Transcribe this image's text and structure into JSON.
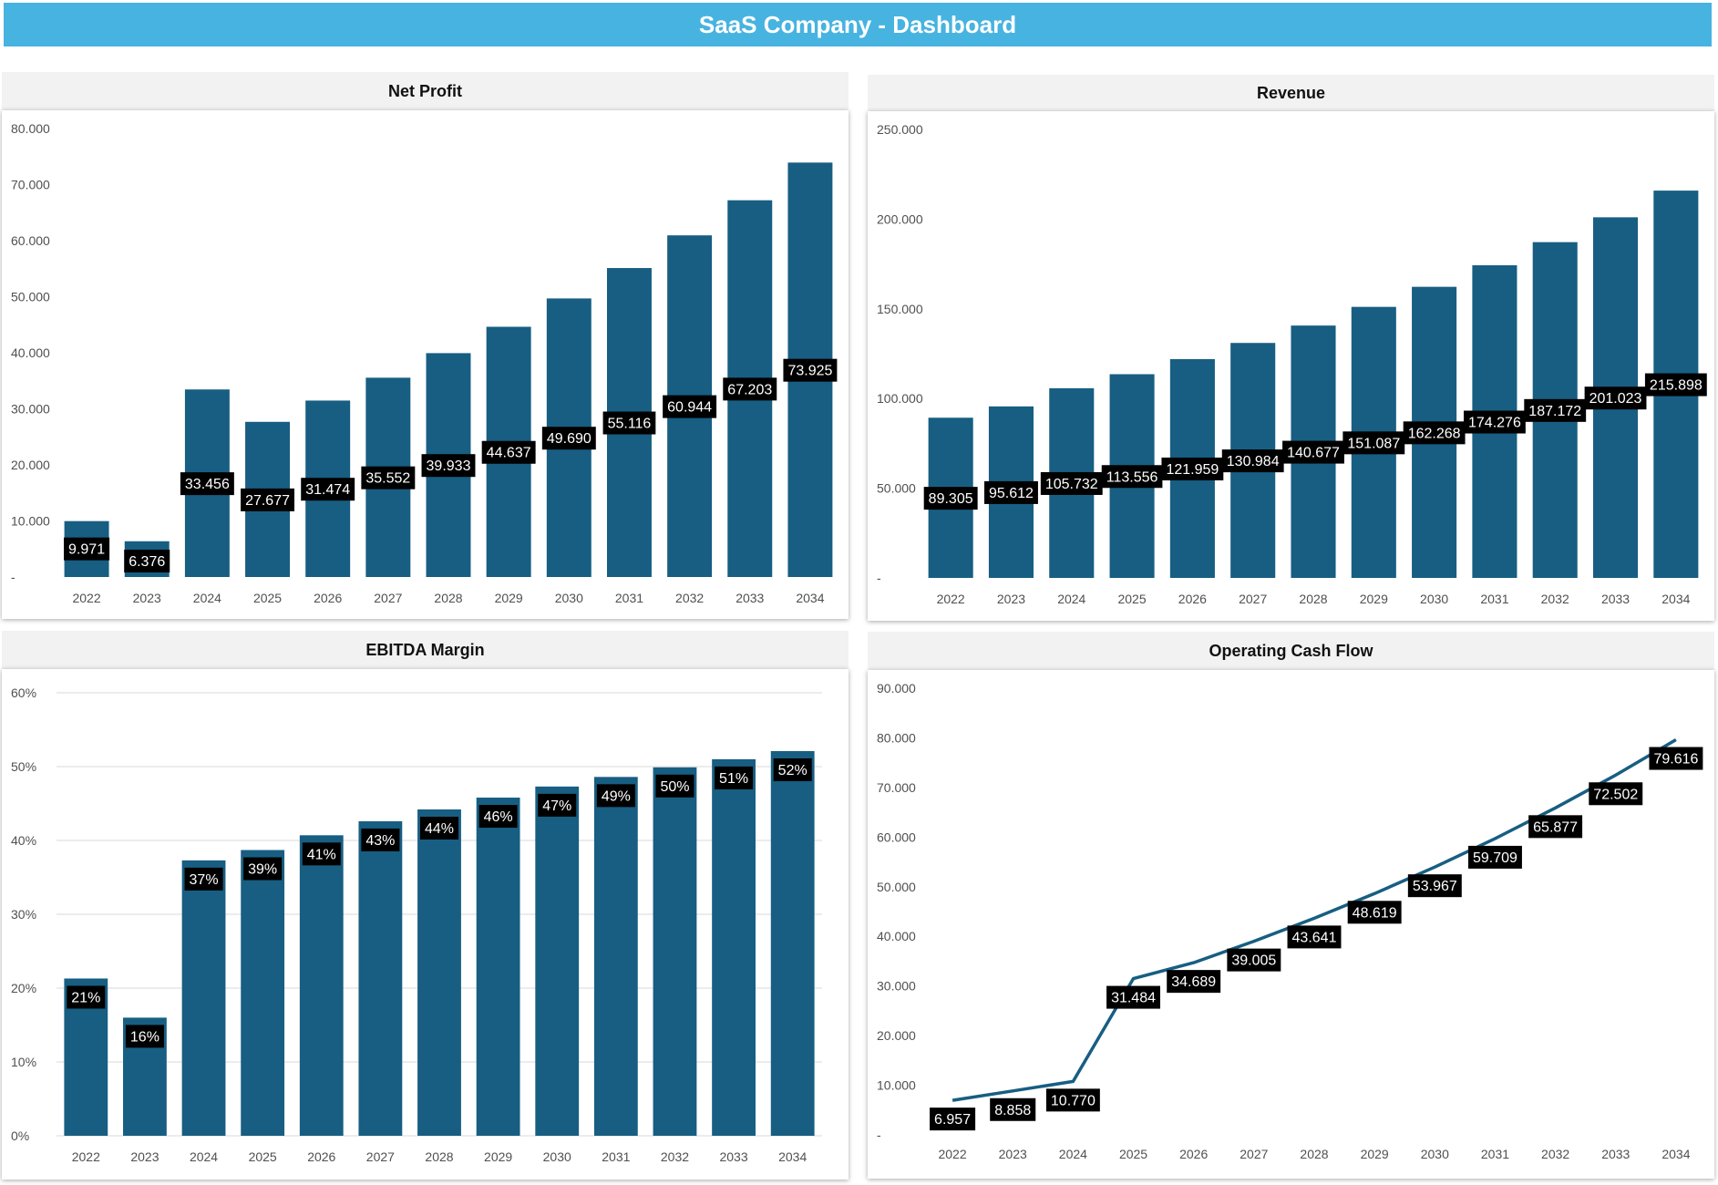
{
  "dashboard": {
    "title": "SaaS Company - Dashboard"
  },
  "colors": {
    "banner": "#47b3e0",
    "bar": "#175e82",
    "line": "#175e82",
    "label_bg": "#000000",
    "label_text": "#ffffff",
    "header_bg": "#f2f2f2"
  },
  "chart_data": [
    {
      "id": "net-profit",
      "type": "bar",
      "title": "Net Profit",
      "categories": [
        "2022",
        "2023",
        "2024",
        "2025",
        "2026",
        "2027",
        "2028",
        "2029",
        "2030",
        "2031",
        "2032",
        "2033",
        "2034"
      ],
      "values": [
        9971,
        6376,
        33456,
        27677,
        31474,
        35552,
        39933,
        44637,
        49690,
        55116,
        60944,
        67203,
        73925
      ],
      "labels": [
        "9.971",
        "6.376",
        "33.456",
        "27.677",
        "31.474",
        "35.552",
        "39.933",
        "44.637",
        "49.690",
        "55.116",
        "60.944",
        "67.203",
        "73.925"
      ],
      "yticks": [
        "-",
        "10.000",
        "20.000",
        "30.000",
        "40.000",
        "50.000",
        "60.000",
        "70.000",
        "80.000"
      ],
      "ylim": [
        0,
        80000
      ],
      "grid": false,
      "trendline": {
        "style": "dotted",
        "color": "#ffffff",
        "start_index": 1
      }
    },
    {
      "id": "revenue",
      "type": "bar",
      "title": "Revenue",
      "categories": [
        "2022",
        "2023",
        "2024",
        "2025",
        "2026",
        "2027",
        "2028",
        "2029",
        "2030",
        "2031",
        "2032",
        "2033",
        "2034"
      ],
      "values": [
        89305,
        95612,
        105732,
        113556,
        121959,
        130984,
        140677,
        151087,
        162268,
        174276,
        187172,
        201023,
        215898
      ],
      "labels": [
        "89.305",
        "95.612",
        "105.732",
        "113.556",
        "121.959",
        "130.984",
        "140.677",
        "151.087",
        "162.268",
        "174.276",
        "187.172",
        "201.023",
        "215.898"
      ],
      "yticks": [
        "-",
        "50.000",
        "100.000",
        "150.000",
        "200.000",
        "250.000"
      ],
      "ylim": [
        0,
        250000
      ],
      "grid": false,
      "trendline": {
        "style": "dotted",
        "color": "#175e82",
        "start_index": 0
      }
    },
    {
      "id": "ebitda-margin",
      "type": "bar",
      "title": "EBITDA Margin",
      "categories": [
        "2022",
        "2023",
        "2024",
        "2025",
        "2026",
        "2027",
        "2028",
        "2029",
        "2030",
        "2031",
        "2032",
        "2033",
        "2034"
      ],
      "values": [
        21.3,
        16.0,
        37.3,
        38.7,
        40.7,
        42.6,
        44.2,
        45.8,
        47.3,
        48.6,
        49.9,
        51.0,
        52.1
      ],
      "labels": [
        "21%",
        "16%",
        "37%",
        "39%",
        "41%",
        "43%",
        "44%",
        "46%",
        "47%",
        "49%",
        "50%",
        "51%",
        "52%"
      ],
      "yticks": [
        "0%",
        "10%",
        "20%",
        "30%",
        "40%",
        "50%",
        "60%"
      ],
      "ylim": [
        0,
        60
      ],
      "grid": true,
      "trendline": {
        "style": "dotted",
        "color": "#175e82",
        "start_index": 1
      }
    },
    {
      "id": "operating-cash-flow",
      "type": "line",
      "title": "Operating Cash Flow",
      "categories": [
        "2022",
        "2023",
        "2024",
        "2025",
        "2026",
        "2027",
        "2028",
        "2029",
        "2030",
        "2031",
        "2032",
        "2033",
        "2034"
      ],
      "values": [
        6957,
        8858,
        10770,
        31484,
        34689,
        39005,
        43641,
        48619,
        53967,
        59709,
        65877,
        72502,
        79616
      ],
      "labels": [
        "6.957",
        "8.858",
        "10.770",
        "31.484",
        "34.689",
        "39.005",
        "43.641",
        "48.619",
        "53.967",
        "59.709",
        "65.877",
        "72.502",
        "79.616"
      ],
      "yticks": [
        "-",
        "10.000",
        "20.000",
        "30.000",
        "40.000",
        "50.000",
        "60.000",
        "70.000",
        "80.000",
        "90.000"
      ],
      "ylim": [
        0,
        90000
      ],
      "grid": false
    }
  ]
}
